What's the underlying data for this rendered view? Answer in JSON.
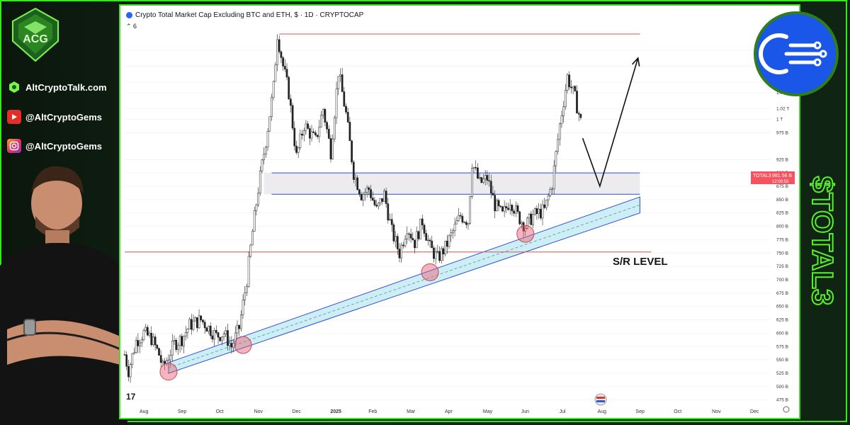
{
  "sidebar": {
    "website": "AltCryptoTalk.com",
    "youtube": "@AltCryptoGems",
    "instagram": "@AltCryptoGems"
  },
  "header": {
    "symbol_title": "Crypto Total Market Cap Excluding BTC and ETH, $ · 1D · CRYPTOCAP",
    "indicator_count": "6"
  },
  "price_label": {
    "symbol": "TOTAL3",
    "value": "981.56 B",
    "countdown": "12:09:58"
  },
  "annotations": {
    "sr_label": "S/R LEVEL",
    "tv_mark": "17"
  },
  "side_title": "$TOTAL3",
  "colors": {
    "accent_green": "#39e51f",
    "resistance_red": "#e0534f",
    "range_blue": "#2d4fd8",
    "channel_fill": "#cdeef5",
    "badge_blue": "#1a56e8"
  },
  "icons": {
    "brand": "diamond-logo-icon",
    "website": "globe-icon",
    "youtube": "youtube-icon",
    "instagram": "instagram-icon",
    "badge": "data-stream-icon"
  },
  "chart_data": {
    "type": "candlestick",
    "x_tick_labels": [
      "Aug",
      "Sep",
      "Oct",
      "Nov",
      "Dec",
      "2025",
      "Feb",
      "Mar",
      "Apr",
      "May",
      "Jun",
      "Jul",
      "Aug",
      "Sep",
      "Oct",
      "Nov",
      "Dec"
    ],
    "y_tick_labels": [
      "1.13 T",
      "1.1 T",
      "1.07 T",
      "1.05 T",
      "1.02 T",
      "1 T",
      "975 B",
      "925 B",
      "900 B",
      "875 B",
      "850 B",
      "825 B",
      "800 B",
      "775 B",
      "750 B",
      "725 B",
      "700 B",
      "675 B",
      "650 B",
      "625 B",
      "600 B",
      "575 B",
      "550 B",
      "525 B",
      "500 B",
      "475 B"
    ],
    "y_ticks_value": [
      1130,
      1100,
      1070,
      1050,
      1020,
      1000,
      975,
      925,
      900,
      875,
      850,
      825,
      800,
      775,
      750,
      725,
      700,
      675,
      650,
      625,
      600,
      575,
      550,
      525,
      500,
      475
    ],
    "ylim": [
      460,
      1160
    ],
    "x_domain": [
      0,
      17
    ],
    "close_path": [
      [
        0.0,
        560
      ],
      [
        0.1,
        530
      ],
      [
        0.3,
        585
      ],
      [
        0.5,
        600
      ],
      [
        0.7,
        590
      ],
      [
        0.9,
        560
      ],
      [
        1.0,
        535
      ],
      [
        1.1,
        550
      ],
      [
        1.3,
        580
      ],
      [
        1.5,
        590
      ],
      [
        1.7,
        615
      ],
      [
        2.0,
        625
      ],
      [
        2.2,
        610
      ],
      [
        2.4,
        595
      ],
      [
        2.6,
        600
      ],
      [
        2.8,
        575
      ],
      [
        3.0,
        610
      ],
      [
        3.2,
        700
      ],
      [
        3.35,
        790
      ],
      [
        3.5,
        870
      ],
      [
        3.7,
        960
      ],
      [
        3.9,
        1060
      ],
      [
        4.0,
        1160
      ],
      [
        4.15,
        1100
      ],
      [
        4.3,
        1050
      ],
      [
        4.5,
        930
      ],
      [
        4.7,
        990
      ],
      [
        5.0,
        960
      ],
      [
        5.2,
        1020
      ],
      [
        5.4,
        940
      ],
      [
        5.6,
        1090
      ],
      [
        5.8,
        1010
      ],
      [
        6.0,
        900
      ],
      [
        6.2,
        860
      ],
      [
        6.4,
        870
      ],
      [
        6.6,
        830
      ],
      [
        6.8,
        860
      ],
      [
        7.0,
        790
      ],
      [
        7.2,
        750
      ],
      [
        7.4,
        800
      ],
      [
        7.6,
        770
      ],
      [
        7.8,
        810
      ],
      [
        8.0,
        760
      ],
      [
        8.2,
        740
      ],
      [
        8.4,
        760
      ],
      [
        8.6,
        790
      ],
      [
        8.8,
        820
      ],
      [
        9.0,
        810
      ],
      [
        9.1,
        920
      ],
      [
        9.3,
        880
      ],
      [
        9.5,
        890
      ],
      [
        9.7,
        840
      ],
      [
        9.9,
        820
      ],
      [
        10.1,
        850
      ],
      [
        10.3,
        820
      ],
      [
        10.5,
        800
      ],
      [
        10.7,
        820
      ],
      [
        11.0,
        830
      ],
      [
        11.2,
        880
      ],
      [
        11.4,
        990
      ],
      [
        11.6,
        1080
      ],
      [
        11.8,
        1040
      ],
      [
        12.0,
        981.56
      ]
    ],
    "horizontal_levels": [
      {
        "name": "resistance",
        "value": 1160
      },
      {
        "name": "range_top",
        "value": 900
      },
      {
        "name": "range_bottom",
        "value": 860
      },
      {
        "name": "sr_level",
        "value": 752
      }
    ],
    "trend_channel": {
      "x": [
        1.15,
        13.5
      ],
      "lower": [
        525,
        825
      ],
      "upper": [
        545,
        855
      ]
    },
    "touch_points": [
      [
        1.15,
        528
      ],
      [
        3.1,
        578
      ],
      [
        8.0,
        714
      ],
      [
        10.5,
        786
      ]
    ],
    "projection": [
      [
        12.0,
        965
      ],
      [
        12.45,
        875
      ],
      [
        13.45,
        1115
      ]
    ],
    "last_value": 981.56
  }
}
